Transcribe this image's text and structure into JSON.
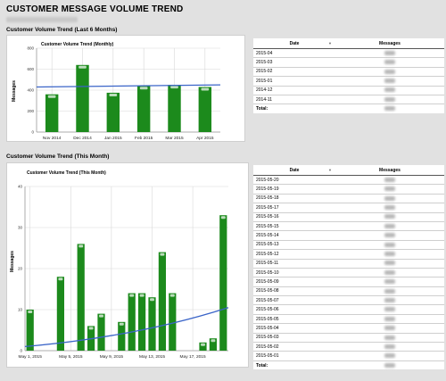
{
  "page": {
    "title": "CUSTOMER MESSAGE VOLUME TREND"
  },
  "colors": {
    "bar": "#1c8a1c",
    "trend": "#3a64c8",
    "grid": "#d8d8d8"
  },
  "monthly": {
    "section_title": "Customer Volume Trend (Last 6 Months)",
    "chart_data": {
      "type": "bar",
      "title": "Customer Volume Trend (Monthly)",
      "xlabel": "",
      "ylabel": "Messages",
      "categories": [
        "Nov 2014",
        "Dec 2014",
        "Jan 2015",
        "Feb 2015",
        "Mar 2015",
        "Apr 2015"
      ],
      "values": [
        360,
        640,
        375,
        440,
        450,
        430
      ],
      "trendline": [
        430,
        450
      ],
      "ylim": [
        0,
        800
      ],
      "yticks": [
        0,
        200,
        400,
        600,
        800
      ],
      "grid": true
    },
    "table": {
      "headers": {
        "date": "Date",
        "messages": "Messages"
      },
      "rows": [
        "2015-04",
        "2015-03",
        "2015-02",
        "2015-01",
        "2014-12",
        "2014-11"
      ],
      "total_label": "Total:"
    }
  },
  "daily": {
    "section_title": "Customer Volume Trend (This Month)",
    "chart_data": {
      "type": "bar",
      "title": "Customer Volume Trend (This Month)",
      "xlabel": "",
      "ylabel": "Messages",
      "categories": [
        "May 1, 2015",
        "May 2, 2015",
        "May 3, 2015",
        "May 4, 2015",
        "May 5, 2015",
        "May 6, 2015",
        "May 7, 2015",
        "May 8, 2015",
        "May 9, 2015",
        "May 10, 2015",
        "May 11, 2015",
        "May 12, 2015",
        "May 13, 2015",
        "May 14, 2015",
        "May 15, 2015",
        "May 16, 2015",
        "May 17, 2015",
        "May 18, 2015",
        "May 19, 2015",
        "May 20, 2015"
      ],
      "values": [
        10,
        0,
        0,
        18,
        0,
        26,
        6,
        9,
        0,
        7,
        14,
        14,
        13,
        24,
        14,
        0,
        0,
        2,
        3,
        33
      ],
      "xticks": [
        "May 1, 2015",
        "May 5, 2015",
        "May 9, 2015",
        "May 13, 2015",
        "May 17, 2015"
      ],
      "trendline": [
        1,
        10.5
      ],
      "ylim": [
        0,
        40
      ],
      "yticks": [
        0,
        10,
        20,
        30,
        40
      ],
      "grid": true
    },
    "table": {
      "headers": {
        "date": "Date",
        "messages": "Messages"
      },
      "rows": [
        "2015-05-20",
        "2015-05-19",
        "2015-05-18",
        "2015-05-17",
        "2015-05-16",
        "2015-05-15",
        "2015-05-14",
        "2015-05-13",
        "2015-05-12",
        "2015-05-11",
        "2015-05-10",
        "2015-05-09",
        "2015-05-08",
        "2015-05-07",
        "2015-05-06",
        "2015-05-05",
        "2015-05-04",
        "2015-05-03",
        "2015-05-02",
        "2015-05-01"
      ],
      "total_label": "Total:"
    }
  }
}
